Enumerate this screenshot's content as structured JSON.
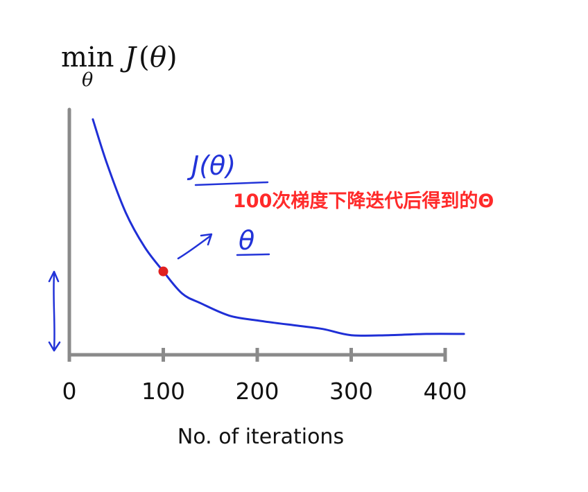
{
  "formula": {
    "op": "min",
    "subscript": "θ",
    "func": "J",
    "arg_open": "(",
    "arg": "θ",
    "arg_close": ")"
  },
  "annotation": {
    "text": "100次梯度下降迭代后得到的Θ",
    "color": "#ff2a2a",
    "handwritten_top": "J(θ)",
    "handwritten_bottom": "θ",
    "ink_color": "#2233d8"
  },
  "chart_data": {
    "type": "line",
    "title": "",
    "xlabel": "No. of iterations",
    "ylabel": "",
    "xlim": [
      0,
      400
    ],
    "ylim": [
      0,
      1
    ],
    "x_ticks": [
      0,
      100,
      200,
      300,
      400
    ],
    "x_tick_labels": [
      "0",
      "100",
      "200",
      "300",
      "400"
    ],
    "grid": false,
    "legend": "none",
    "line_color": "#1f2fd6",
    "axis_color": "#8a8a8a",
    "marker_color": "#e02020",
    "series": [
      {
        "x": [
          25,
          40,
          60,
          80,
          100,
          120,
          140,
          170,
          200,
          240,
          270,
          300,
          340,
          380,
          420
        ],
        "values": [
          0.96,
          0.78,
          0.58,
          0.44,
          0.34,
          0.25,
          0.21,
          0.16,
          0.14,
          0.12,
          0.105,
          0.08,
          0.08,
          0.085,
          0.085
        ]
      }
    ],
    "highlight_point": {
      "x": 100,
      "y": 0.34
    }
  }
}
